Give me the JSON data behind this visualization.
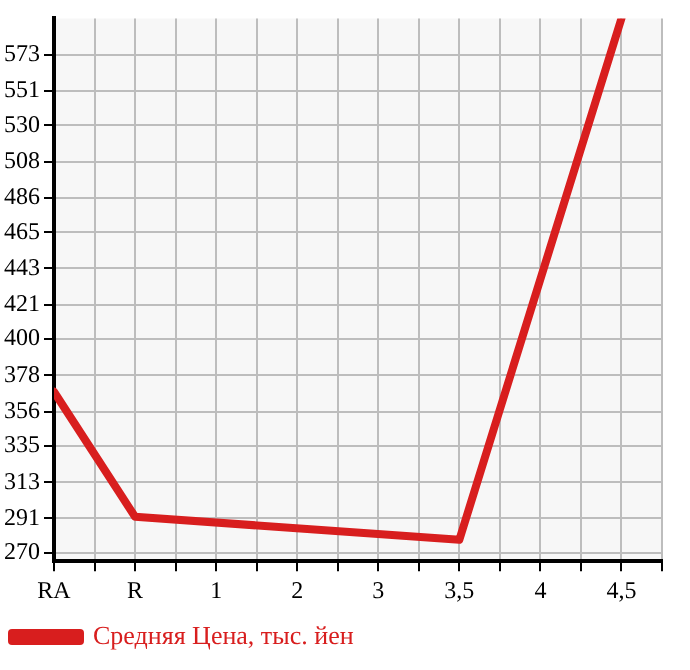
{
  "chart_data": {
    "type": "line",
    "categories": [
      "RA",
      "R",
      "1",
      "2",
      "3",
      "3,5",
      "4",
      "4,5"
    ],
    "series": [
      {
        "name": "Средняя Цена, тыс. йен",
        "color": "#d81e1e",
        "values": [
          368,
          292,
          null,
          null,
          null,
          278,
          null,
          595
        ]
      }
    ],
    "ylim": [
      265,
      595
    ],
    "yticks": [
      270,
      291,
      313,
      335,
      356,
      378,
      400,
      421,
      443,
      465,
      486,
      508,
      530,
      551,
      573
    ],
    "grid": true,
    "legend": "bottom",
    "marker": "none",
    "line_style": "solid"
  }
}
